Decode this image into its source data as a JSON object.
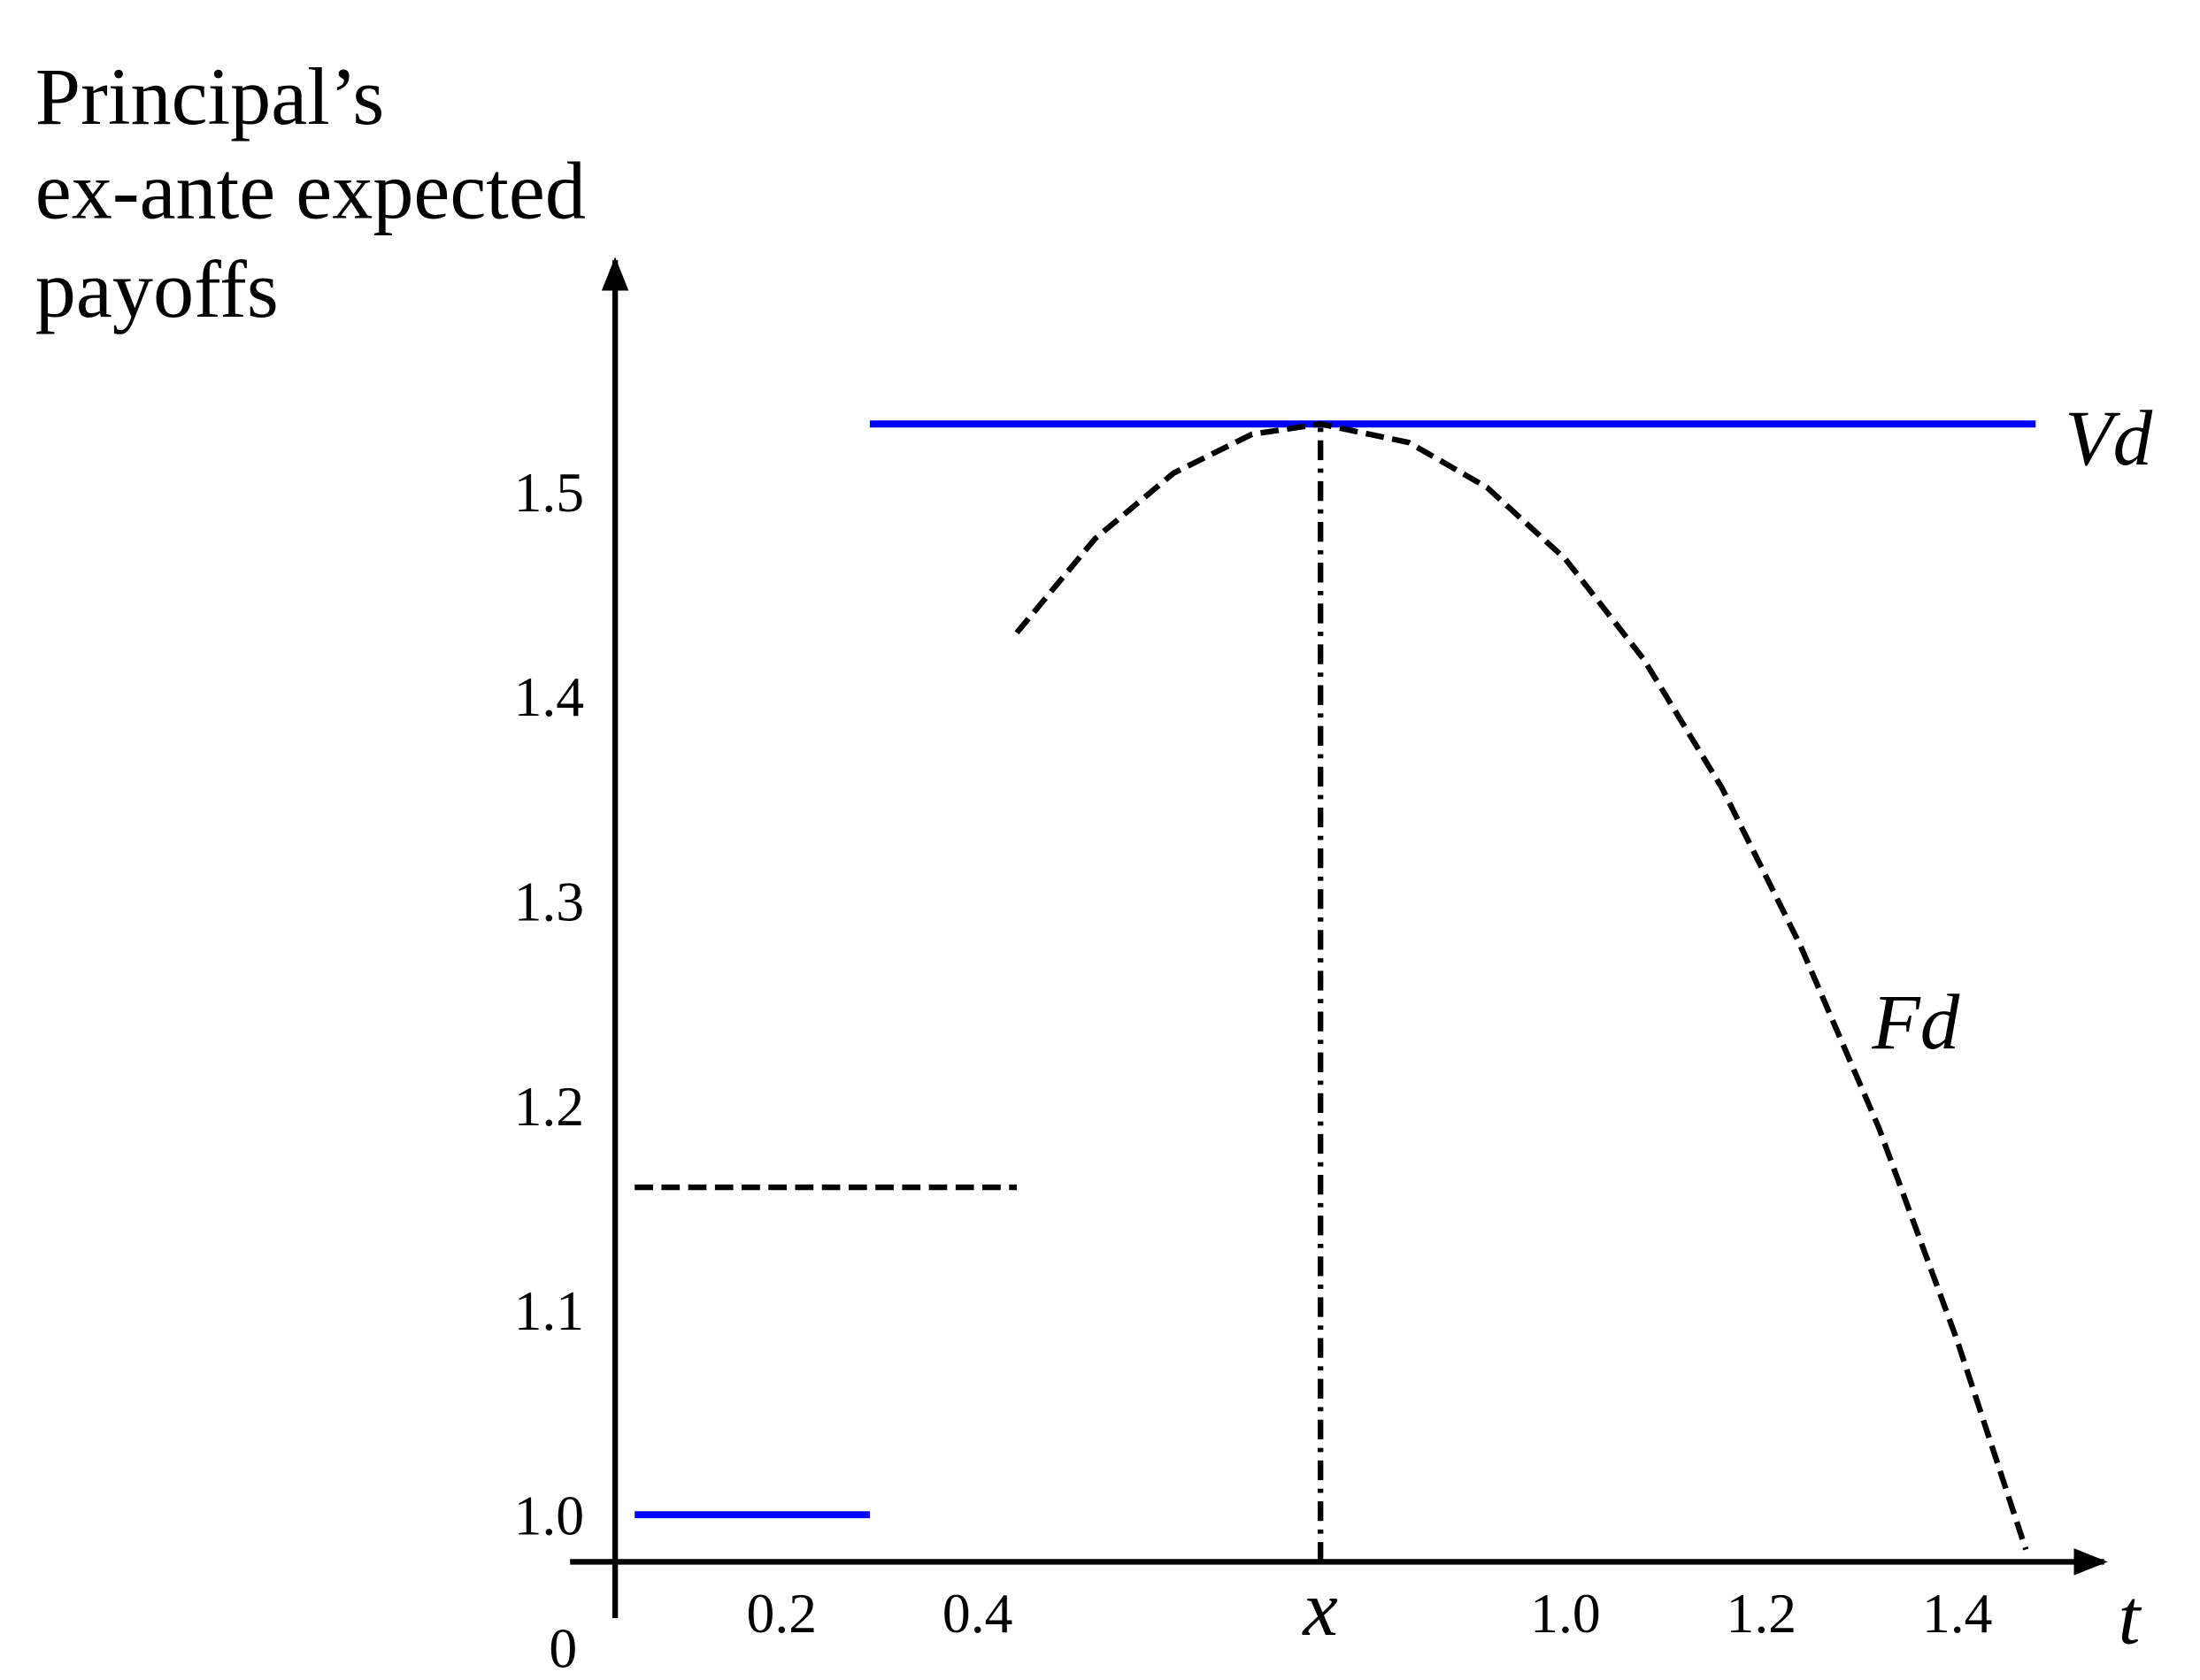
{
  "chart_data": {
    "type": "line",
    "ylabel": [
      "Principal’s",
      "ex-ante expected",
      "payoffs"
    ],
    "xlabel": "t",
    "origin_label": "0",
    "xlim": [
      0.03,
      1.55
    ],
    "ylim": [
      0.977,
      1.613
    ],
    "xticks": [
      0.2,
      0.4,
      {
        "value": 0.75,
        "label": "x"
      },
      {
        "value": 1,
        "label": "1.0"
      },
      1.2,
      1.4
    ],
    "yticks": [
      {
        "value": 1,
        "label": "1.0"
      },
      1.1,
      1.2,
      1.3,
      1.4,
      1.5
    ],
    "series": [
      {
        "name": "Vd",
        "color": "#0000ff",
        "style": "solid",
        "x": [
          0.05,
          0.29,
          null,
          0.29,
          1.48
        ],
        "values": [
          1.0,
          1.0,
          null,
          1.533,
          1.533
        ]
      },
      {
        "name": "Fd",
        "color": "#000000",
        "style": "dashed",
        "x": [
          0.05,
          0.44,
          null,
          0.44,
          0.52,
          0.6,
          0.68,
          0.75,
          0.84,
          0.92,
          1.0,
          1.08,
          1.16,
          1.24,
          1.32,
          1.4,
          1.47
        ],
        "values": [
          1.16,
          1.16,
          null,
          1.431,
          1.477,
          1.509,
          1.528,
          1.533,
          1.524,
          1.502,
          1.467,
          1.418,
          1.355,
          1.278,
          1.189,
          1.085,
          0.983
        ]
      }
    ]
  }
}
